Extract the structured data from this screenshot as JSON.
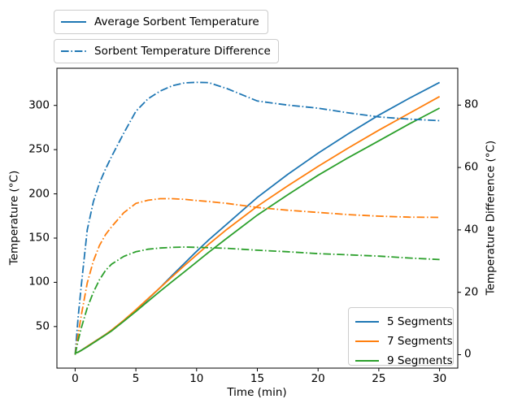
{
  "colors": {
    "blue": "#1f77b4",
    "orange": "#ff7f0e",
    "green": "#2ca02c",
    "axis": "#000000",
    "legend_border": "#cccccc",
    "background": "#ffffff"
  },
  "legends": {
    "style_legend": [
      {
        "label": "Average Sorbent Temperature",
        "line_style": "solid",
        "color": "#1f77b4"
      },
      {
        "label": "Sorbent Temperature Difference",
        "line_style": "dashdot",
        "color": "#1f77b4"
      }
    ],
    "series_legend": [
      {
        "label": "5 Segments",
        "color": "#1f77b4"
      },
      {
        "label": "7 Segments",
        "color": "#ff7f0e"
      },
      {
        "label": "9 Segments",
        "color": "#2ca02c"
      }
    ]
  },
  "chart_data": {
    "type": "line",
    "title": "",
    "xlabel": "Time (min)",
    "ylabel_left": "Temperature (°C)",
    "ylabel_right": "Temperature Difference (°C)",
    "grid": false,
    "xlim": [
      -1.5,
      31.5
    ],
    "ylim_left": [
      3,
      342
    ],
    "ylim_right": [
      -4.3,
      91.8
    ],
    "x_ticks": [
      0,
      5,
      10,
      15,
      20,
      25,
      30
    ],
    "y_left_ticks": [
      50,
      100,
      150,
      200,
      250,
      300
    ],
    "y_right_ticks": [
      0,
      20,
      40,
      60,
      80
    ],
    "legend_positions": {
      "style_legend": "above-axes upper-left",
      "series_legend": "lower right"
    },
    "x": [
      0,
      0.25,
      0.5,
      1,
      1.5,
      2,
      2.5,
      3,
      4,
      5,
      6,
      7,
      8,
      9,
      10,
      11,
      12.5,
      15,
      17.5,
      20,
      22.5,
      25,
      27.5,
      30
    ],
    "series": [
      {
        "name": "5 Segments - Average Sorbent Temperature",
        "axis": "left",
        "style": "solid",
        "color": "#1f77b4",
        "values": [
          20,
          21,
          23,
          27.5,
          32,
          36.5,
          41,
          45.5,
          56,
          68,
          81,
          94,
          108,
          121.5,
          135,
          148,
          166,
          196,
          222,
          246,
          268,
          289,
          308,
          326
        ]
      },
      {
        "name": "7 Segments - Average Sorbent Temperature",
        "axis": "left",
        "style": "solid",
        "color": "#ff7f0e",
        "values": [
          20,
          21,
          23,
          27.5,
          32,
          36.5,
          41,
          46,
          57,
          69,
          81.5,
          94,
          106.5,
          119,
          131,
          143,
          160,
          186,
          209,
          231,
          252,
          272,
          291,
          310
        ]
      },
      {
        "name": "9 Segments - Average Sorbent Temperature",
        "axis": "left",
        "style": "solid",
        "color": "#2ca02c",
        "values": [
          20,
          21,
          23,
          27,
          31.5,
          36,
          40.5,
          45,
          56,
          67,
          78.5,
          90,
          101,
          112,
          123,
          134,
          150,
          176,
          199,
          221,
          241,
          260,
          279,
          297
        ]
      },
      {
        "name": "5 Segments - Sorbent Temperature Difference",
        "axis": "right",
        "style": "dashdot",
        "color": "#1f77b4",
        "values": [
          0,
          12,
          22,
          40,
          49,
          55,
          59.5,
          63.5,
          71,
          78,
          82,
          84.5,
          86.2,
          87.1,
          87.3,
          87.2,
          85.3,
          81.3,
          80,
          79,
          77.5,
          76.2,
          75.5,
          75
        ]
      },
      {
        "name": "7 Segments - Sorbent Temperature Difference",
        "axis": "right",
        "style": "dashdot",
        "color": "#ff7f0e",
        "values": [
          0,
          6.5,
          12.5,
          23,
          30,
          35,
          38.5,
          41,
          45.5,
          48.5,
          49.5,
          50,
          50,
          49.8,
          49.4,
          49.1,
          48.5,
          47.2,
          46.3,
          45.6,
          44.9,
          44.4,
          44.1,
          44
        ]
      },
      {
        "name": "9 Segments - Sorbent Temperature Difference",
        "axis": "right",
        "style": "dashdot",
        "color": "#2ca02c",
        "values": [
          0,
          4.5,
          8.5,
          15,
          20,
          24,
          27,
          29,
          31.5,
          33,
          33.8,
          34.2,
          34.4,
          34.5,
          34.4,
          34.3,
          34.1,
          33.5,
          33,
          32.4,
          32,
          31.6,
          31,
          30.5
        ]
      }
    ]
  }
}
